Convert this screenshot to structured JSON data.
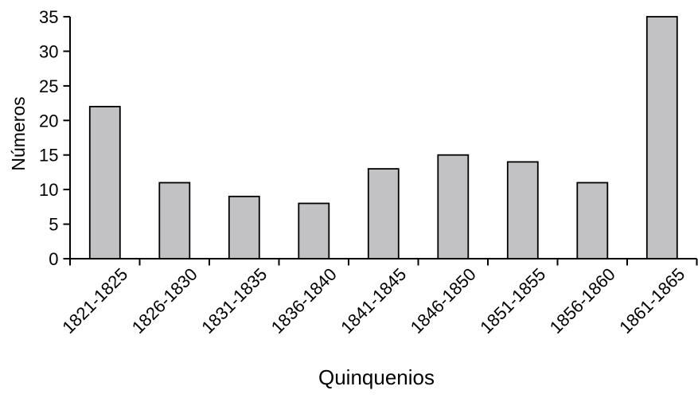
{
  "chart_data": {
    "type": "bar",
    "categories": [
      "1821-1825",
      "1826-1830",
      "1831-1835",
      "1836-1840",
      "1841-1845",
      "1846-1850",
      "1851-1855",
      "1856-1860",
      "1861-1865"
    ],
    "values": [
      22,
      11,
      9,
      8,
      13,
      15,
      14,
      11,
      35
    ],
    "title": "",
    "xlabel": "Quinquenios",
    "ylabel": "Números",
    "ylim": [
      0,
      35
    ],
    "yticks": [
      0,
      5,
      10,
      15,
      20,
      25,
      30,
      35
    ],
    "grid": false,
    "legend": "none",
    "colors": {
      "bar_fill": "#c2c2c5",
      "bar_stroke": "#000000",
      "axis": "#000000",
      "background": "#ffffff"
    }
  }
}
